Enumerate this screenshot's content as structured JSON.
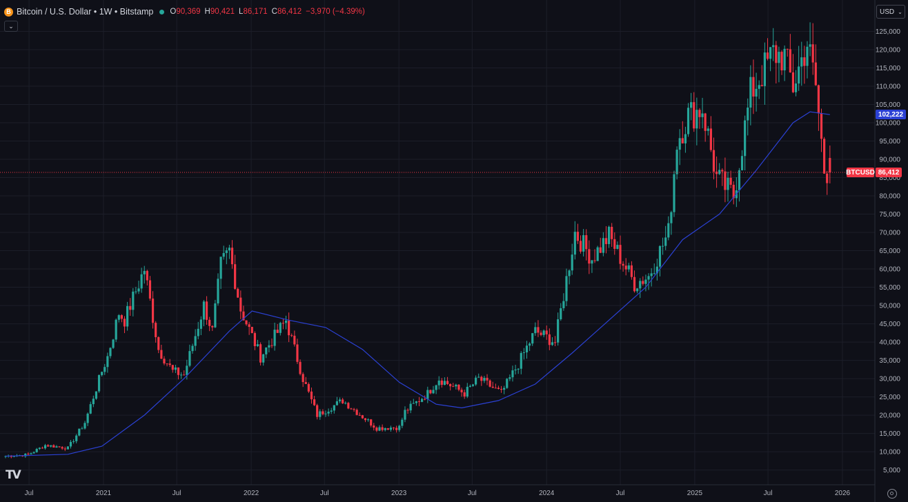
{
  "header": {
    "logo_symbol": "B",
    "title": "Bitcoin / U.S. Dollar • 1W • Bitstamp",
    "ohlc": [
      {
        "label": "O",
        "value": "90,369"
      },
      {
        "label": "H",
        "value": "90,421"
      },
      {
        "label": "L",
        "value": "86,171"
      },
      {
        "label": "C",
        "value": "86,412"
      },
      {
        "label": "",
        "value": "−3,970 (−4.39%)"
      }
    ]
  },
  "currency": "USD",
  "collapse_icon": "chevron-down-icon",
  "logo": "TV",
  "tags": {
    "ma_value": "102,222",
    "symbol": "BTCUSD",
    "last_price": "86,412"
  },
  "colors": {
    "up": "#26a69a",
    "down": "#f23645",
    "ma": "#2b41d4",
    "background": "#0f1018",
    "grid": "#1c1e29"
  },
  "chart_data": {
    "type": "candlestick",
    "symbol": "BTCUSD",
    "last_price": 86412,
    "ma_last": 102222,
    "ylim": [
      0,
      127500
    ],
    "y_ticks": [
      5000,
      10000,
      15000,
      20000,
      25000,
      30000,
      35000,
      40000,
      45000,
      50000,
      55000,
      60000,
      65000,
      70000,
      75000,
      80000,
      85000,
      90000,
      95000,
      100000,
      105000,
      110000,
      115000,
      120000,
      125000
    ],
    "x_ticks": [
      "Jul",
      "2021",
      "Jul",
      "2022",
      "Jul",
      "2023",
      "Jul",
      "2024",
      "Jul",
      "2025",
      "Jul",
      "2026"
    ],
    "x_tick_dates": [
      "2020-07",
      "2021-01",
      "2021-07",
      "2022-01",
      "2022-07",
      "2023-01",
      "2023-07",
      "2024-01",
      "2024-07",
      "2025-01",
      "2025-07",
      "2026-01"
    ],
    "start_week": "2020-05-04",
    "anchors": [
      {
        "date": "2020-05-04",
        "price": 8800
      },
      {
        "date": "2020-06-29",
        "price": 9200
      },
      {
        "date": "2020-08-10",
        "price": 11800
      },
      {
        "date": "2020-10-05",
        "price": 11000
      },
      {
        "date": "2020-11-16",
        "price": 18000
      },
      {
        "date": "2020-12-28",
        "price": 32000
      },
      {
        "date": "2021-01-11",
        "price": 36000
      },
      {
        "date": "2021-02-08",
        "price": 48000
      },
      {
        "date": "2021-02-22",
        "price": 46000
      },
      {
        "date": "2021-04-12",
        "price": 60000
      },
      {
        "date": "2021-05-17",
        "price": 38000
      },
      {
        "date": "2021-06-21",
        "price": 32000
      },
      {
        "date": "2021-07-19",
        "price": 31000
      },
      {
        "date": "2021-09-06",
        "price": 50000
      },
      {
        "date": "2021-09-27",
        "price": 43000
      },
      {
        "date": "2021-10-18",
        "price": 61000
      },
      {
        "date": "2021-11-08",
        "price": 65000
      },
      {
        "date": "2021-12-06",
        "price": 49000
      },
      {
        "date": "2022-01-24",
        "price": 36000
      },
      {
        "date": "2022-03-28",
        "price": 46000
      },
      {
        "date": "2022-05-09",
        "price": 30000
      },
      {
        "date": "2022-06-13",
        "price": 20000
      },
      {
        "date": "2022-08-15",
        "price": 24000
      },
      {
        "date": "2022-11-07",
        "price": 16500
      },
      {
        "date": "2023-01-02",
        "price": 16700
      },
      {
        "date": "2023-01-16",
        "price": 21000
      },
      {
        "date": "2023-03-13",
        "price": 26000
      },
      {
        "date": "2023-04-10",
        "price": 30000
      },
      {
        "date": "2023-06-12",
        "price": 26000
      },
      {
        "date": "2023-07-17",
        "price": 30000
      },
      {
        "date": "2023-09-11",
        "price": 26000
      },
      {
        "date": "2023-10-23",
        "price": 34000
      },
      {
        "date": "2023-12-04",
        "price": 43000
      },
      {
        "date": "2024-01-22",
        "price": 40000
      },
      {
        "date": "2024-03-11",
        "price": 70000
      },
      {
        "date": "2024-04-22",
        "price": 63000
      },
      {
        "date": "2024-06-03",
        "price": 69000
      },
      {
        "date": "2024-08-05",
        "price": 56000
      },
      {
        "date": "2024-09-09",
        "price": 58000
      },
      {
        "date": "2024-10-28",
        "price": 70000
      },
      {
        "date": "2024-11-18",
        "price": 95000
      },
      {
        "date": "2024-12-16",
        "price": 102000
      },
      {
        "date": "2025-01-20",
        "price": 104000
      },
      {
        "date": "2025-02-24",
        "price": 85000
      },
      {
        "date": "2025-04-07",
        "price": 80000
      },
      {
        "date": "2025-05-19",
        "price": 108000
      },
      {
        "date": "2025-07-14",
        "price": 119000
      },
      {
        "date": "2025-08-11",
        "price": 118000
      },
      {
        "date": "2025-09-01",
        "price": 110000
      },
      {
        "date": "2025-10-06",
        "price": 122000
      },
      {
        "date": "2025-10-27",
        "price": 110000
      },
      {
        "date": "2025-11-17",
        "price": 87000
      },
      {
        "date": "2025-12-01",
        "price": 86412
      }
    ],
    "moving_average": [
      {
        "date": "2020-05-04",
        "value": 8800
      },
      {
        "date": "2020-10-05",
        "value": 9300
      },
      {
        "date": "2020-12-28",
        "value": 11500
      },
      {
        "date": "2021-04-12",
        "value": 20000
      },
      {
        "date": "2021-07-19",
        "value": 30000
      },
      {
        "date": "2021-11-08",
        "value": 43000
      },
      {
        "date": "2022-01-03",
        "value": 48500
      },
      {
        "date": "2022-04-04",
        "value": 46000
      },
      {
        "date": "2022-07-04",
        "value": 44000
      },
      {
        "date": "2022-10-03",
        "value": 38000
      },
      {
        "date": "2023-01-02",
        "value": 29000
      },
      {
        "date": "2023-04-03",
        "value": 23000
      },
      {
        "date": "2023-06-05",
        "value": 22000
      },
      {
        "date": "2023-09-04",
        "value": 24000
      },
      {
        "date": "2023-12-04",
        "value": 28500
      },
      {
        "date": "2024-03-04",
        "value": 37000
      },
      {
        "date": "2024-06-03",
        "value": 46000
      },
      {
        "date": "2024-09-02",
        "value": 55000
      },
      {
        "date": "2024-12-02",
        "value": 68000
      },
      {
        "date": "2025-03-03",
        "value": 75000
      },
      {
        "date": "2025-06-02",
        "value": 87000
      },
      {
        "date": "2025-09-01",
        "value": 100000
      },
      {
        "date": "2025-10-13",
        "value": 103000
      },
      {
        "date": "2025-12-01",
        "value": 102222
      }
    ]
  }
}
